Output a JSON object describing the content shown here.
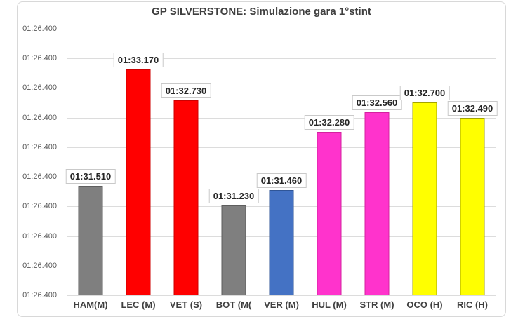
{
  "chart_data": {
    "type": "bar",
    "title": "GP SILVERSTONE: Simulazione gara 1°stint",
    "categories": [
      "HAM(M)",
      "LEC (M)",
      "VET (S)",
      "BOT (M(",
      "VER (M)",
      "HUL (M)",
      "STR (M)",
      "OCO (H)",
      "RIC (H)"
    ],
    "values": [
      91.51,
      93.17,
      92.73,
      91.23,
      91.46,
      92.28,
      92.56,
      92.7,
      92.49
    ],
    "value_labels": [
      "01:31.510",
      "01:33.170",
      "01:32.730",
      "01:31.230",
      "01:31.460",
      "01:32.280",
      "01:32.560",
      "01:32.700",
      "01:32.490"
    ],
    "bar_colors": [
      "#7f7f7f",
      "#ff0000",
      "#ff0000",
      "#7f7f7f",
      "#4472c4",
      "#ff33cc",
      "#ff33cc",
      "#ffff00",
      "#ffff00"
    ],
    "bar_border_colors": [
      "#5e5e5e",
      "#cc0000",
      "#cc0000",
      "#5e5e5e",
      "#2f5597",
      "#d4219f",
      "#d4219f",
      "#a3a300",
      "#a3a300"
    ],
    "xlabel": "",
    "ylabel": "",
    "y_axis": {
      "tick_labels": [
        "01:26.400",
        "01:26.400",
        "01:26.400",
        "01:26.400",
        "01:26.400",
        "01:26.400",
        "01:26.400",
        "01:26.400",
        "01:26.400",
        "01:26.400"
      ],
      "min": 89.955,
      "max": 93.755
    },
    "grid": true,
    "legend": false,
    "value_unit": "minutes:seconds lap time"
  },
  "styles": {
    "gridline_color": "#dcdcdc",
    "label_box_border": "#c9c9c9",
    "y_label_color": "#595959",
    "x_label_color": "#3f3f3f"
  }
}
